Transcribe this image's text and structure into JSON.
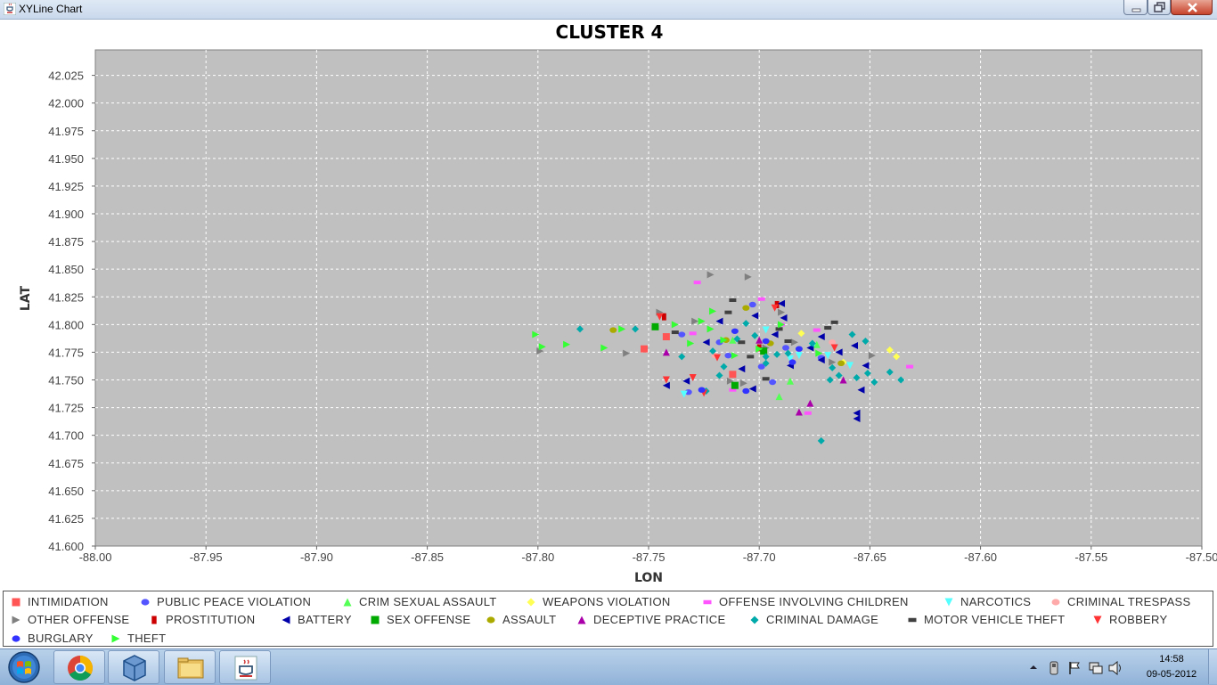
{
  "window": {
    "title": "XYLine Chart",
    "icon": "java-cup-icon"
  },
  "chart_data": {
    "type": "scatter",
    "title": "CLUSTER 4",
    "xlabel": "LON",
    "ylabel": "LAT",
    "xlim": [
      -88.0,
      -87.5
    ],
    "ylim": [
      41.6,
      42.05
    ],
    "xticks": [
      "-88.00",
      "-87.95",
      "-87.90",
      "-87.85",
      "-87.80",
      "-87.75",
      "-87.70",
      "-87.65",
      "-87.60",
      "-87.55",
      "-87.50"
    ],
    "yticks": [
      "41.600",
      "41.625",
      "41.650",
      "41.675",
      "41.700",
      "41.725",
      "41.750",
      "41.775",
      "41.800",
      "41.825",
      "41.850",
      "41.875",
      "41.900",
      "41.925",
      "41.950",
      "41.975",
      "42.000",
      "42.025"
    ],
    "grid": true,
    "legend": "bottom",
    "series": [
      {
        "name": "INTIMIDATION",
        "color": "#ff5555",
        "marker": "square",
        "points": [
          [
            -87.752,
            41.778
          ],
          [
            -87.742,
            41.789
          ],
          [
            -87.712,
            41.755
          ]
        ]
      },
      {
        "name": "PUBLIC PEACE VIOLATION",
        "color": "#5555ff",
        "marker": "circle",
        "points": [
          [
            -87.735,
            41.791
          ],
          [
            -87.732,
            41.739
          ],
          [
            -87.714,
            41.772
          ],
          [
            -87.703,
            41.818
          ],
          [
            -87.699,
            41.762
          ],
          [
            -87.694,
            41.748
          ],
          [
            -87.688,
            41.779
          ],
          [
            -87.672,
            41.77
          ],
          [
            -87.718,
            41.784
          ]
        ]
      },
      {
        "name": "CRIM SEXUAL ASSAULT",
        "color": "#55ff55",
        "marker": "triangle-up",
        "points": [
          [
            -87.691,
            41.735
          ],
          [
            -87.686,
            41.749
          ],
          [
            -87.712,
            41.786
          ],
          [
            -87.674,
            41.782
          ]
        ]
      },
      {
        "name": "WEAPONS VIOLATION",
        "color": "#ffff55",
        "marker": "diamond",
        "points": [
          [
            -87.641,
            41.777
          ],
          [
            -87.638,
            41.771
          ],
          [
            -87.681,
            41.792
          ],
          [
            -87.662,
            41.766
          ]
        ]
      },
      {
        "name": "OFFENSE INVOLVING CHILDREN",
        "color": "#ff55ff",
        "marker": "rect-h",
        "points": [
          [
            -87.728,
            41.838
          ],
          [
            -87.699,
            41.823
          ],
          [
            -87.632,
            41.762
          ],
          [
            -87.678,
            41.72
          ],
          [
            -87.712,
            41.741
          ],
          [
            -87.69,
            41.8
          ],
          [
            -87.73,
            41.792
          ],
          [
            -87.674,
            41.795
          ]
        ]
      },
      {
        "name": "NARCOTICS",
        "color": "#55ffff",
        "marker": "triangle-down",
        "points": [
          [
            -87.734,
            41.737
          ],
          [
            -87.686,
            41.769
          ],
          [
            -87.682,
            41.772
          ],
          [
            -87.669,
            41.772
          ],
          [
            -87.659,
            41.763
          ],
          [
            -87.697,
            41.795
          ],
          [
            -87.676,
            41.78
          ]
        ]
      },
      {
        "name": "CRIMINAL TRESPASS",
        "color": "#ffaaaa",
        "marker": "circle",
        "points": [
          [
            -87.72,
            41.772
          ],
          [
            -87.667,
            41.784
          ]
        ]
      },
      {
        "name": "OTHER OFFENSE",
        "color": "#808080",
        "marker": "triangle-right",
        "points": [
          [
            -87.722,
            41.845
          ],
          [
            -87.705,
            41.843
          ],
          [
            -87.799,
            41.776
          ],
          [
            -87.76,
            41.774
          ],
          [
            -87.745,
            41.811
          ],
          [
            -87.729,
            41.803
          ],
          [
            -87.707,
            41.747
          ],
          [
            -87.697,
            41.779
          ],
          [
            -87.684,
            41.784
          ],
          [
            -87.667,
            41.766
          ],
          [
            -87.649,
            41.772
          ],
          [
            -87.713,
            41.749
          ],
          [
            -87.69,
            41.811
          ]
        ]
      },
      {
        "name": "PROSTITUTION",
        "color": "#cc0000",
        "marker": "rect-v",
        "points": [
          [
            -87.743,
            41.807
          ],
          [
            -87.692,
            41.818
          ],
          [
            -87.7,
            41.779
          ]
        ]
      },
      {
        "name": "BATTERY",
        "color": "#0000aa",
        "marker": "triangle-left",
        "points": [
          [
            -87.656,
            41.72
          ],
          [
            -87.656,
            41.715
          ],
          [
            -87.654,
            41.741
          ],
          [
            -87.652,
            41.763
          ],
          [
            -87.657,
            41.781
          ],
          [
            -87.672,
            41.768
          ],
          [
            -87.686,
            41.763
          ],
          [
            -87.693,
            41.791
          ],
          [
            -87.703,
            41.742
          ],
          [
            -87.708,
            41.76
          ],
          [
            -87.718,
            41.803
          ],
          [
            -87.724,
            41.784
          ],
          [
            -87.733,
            41.749
          ],
          [
            -87.742,
            41.745
          ],
          [
            -87.69,
            41.819
          ],
          [
            -87.702,
            41.808
          ],
          [
            -87.664,
            41.775
          ],
          [
            -87.677,
            41.779
          ],
          [
            -87.689,
            41.806
          ],
          [
            -87.672,
            41.789
          ]
        ]
      },
      {
        "name": "SEX OFFENSE",
        "color": "#00aa00",
        "marker": "square",
        "points": [
          [
            -87.747,
            41.798
          ],
          [
            -87.711,
            41.745
          ],
          [
            -87.698,
            41.776
          ]
        ]
      },
      {
        "name": "ASSAULT",
        "color": "#aaaa00",
        "marker": "circle",
        "points": [
          [
            -87.766,
            41.795
          ],
          [
            -87.706,
            41.815
          ],
          [
            -87.715,
            41.786
          ],
          [
            -87.695,
            41.783
          ],
          [
            -87.663,
            41.765
          ]
        ]
      },
      {
        "name": "DECEPTIVE PRACTICE",
        "color": "#aa00aa",
        "marker": "triangle-up",
        "points": [
          [
            -87.742,
            41.775
          ],
          [
            -87.682,
            41.721
          ],
          [
            -87.677,
            41.729
          ],
          [
            -87.662,
            41.75
          ],
          [
            -87.7,
            41.786
          ]
        ]
      },
      {
        "name": "CRIMINAL DAMAGE",
        "color": "#00aaaa",
        "marker": "diamond",
        "points": [
          [
            -87.781,
            41.796
          ],
          [
            -87.756,
            41.796
          ],
          [
            -87.735,
            41.771
          ],
          [
            -87.721,
            41.776
          ],
          [
            -87.716,
            41.762
          ],
          [
            -87.706,
            41.801
          ],
          [
            -87.697,
            41.771
          ],
          [
            -87.687,
            41.774
          ],
          [
            -87.676,
            41.783
          ],
          [
            -87.667,
            41.761
          ],
          [
            -87.664,
            41.754
          ],
          [
            -87.658,
            41.791
          ],
          [
            -87.656,
            41.752
          ],
          [
            -87.652,
            41.785
          ],
          [
            -87.651,
            41.756
          ],
          [
            -87.648,
            41.748
          ],
          [
            -87.641,
            41.757
          ],
          [
            -87.636,
            41.75
          ],
          [
            -87.672,
            41.695
          ],
          [
            -87.692,
            41.773
          ],
          [
            -87.718,
            41.754
          ],
          [
            -87.71,
            41.787
          ],
          [
            -87.702,
            41.79
          ],
          [
            -87.668,
            41.75
          ],
          [
            -87.724,
            41.74
          ],
          [
            -87.697,
            41.765
          ]
        ]
      },
      {
        "name": "MOTOR VEHICLE THEFT",
        "color": "#404040",
        "marker": "rect-h",
        "points": [
          [
            -87.712,
            41.822
          ],
          [
            -87.708,
            41.784
          ],
          [
            -87.704,
            41.771
          ],
          [
            -87.697,
            41.751
          ],
          [
            -87.687,
            41.785
          ],
          [
            -87.669,
            41.797
          ],
          [
            -87.666,
            41.802
          ],
          [
            -87.691,
            41.796
          ],
          [
            -87.738,
            41.793
          ],
          [
            -87.714,
            41.811
          ]
        ]
      },
      {
        "name": "ROBBERY",
        "color": "#ff3333",
        "marker": "triangle-down",
        "points": [
          [
            -87.745,
            41.807
          ],
          [
            -87.742,
            41.75
          ],
          [
            -87.73,
            41.752
          ],
          [
            -87.725,
            41.738
          ],
          [
            -87.719,
            41.77
          ],
          [
            -87.666,
            41.779
          ],
          [
            -87.693,
            41.815
          ]
        ]
      },
      {
        "name": "BURGLARY",
        "color": "#3333ff",
        "marker": "circle",
        "points": [
          [
            -87.685,
            41.766
          ],
          [
            -87.682,
            41.778
          ],
          [
            -87.697,
            41.785
          ],
          [
            -87.706,
            41.74
          ],
          [
            -87.711,
            41.794
          ],
          [
            -87.726,
            41.741
          ]
        ]
      },
      {
        "name": "THEFT",
        "color": "#33ff33",
        "marker": "triangle-right",
        "points": [
          [
            -87.801,
            41.791
          ],
          [
            -87.798,
            41.78
          ],
          [
            -87.787,
            41.782
          ],
          [
            -87.77,
            41.779
          ],
          [
            -87.762,
            41.796
          ],
          [
            -87.738,
            41.8
          ],
          [
            -87.726,
            41.803
          ],
          [
            -87.722,
            41.796
          ],
          [
            -87.721,
            41.812
          ],
          [
            -87.7,
            41.778
          ],
          [
            -87.69,
            41.8
          ],
          [
            -87.673,
            41.774
          ],
          [
            -87.716,
            41.786
          ],
          [
            -87.711,
            41.772
          ],
          [
            -87.731,
            41.783
          ]
        ]
      }
    ]
  },
  "taskbar": {
    "start": "windows-start-orb-icon",
    "apps": [
      "chrome-icon",
      "virtualbox-icon",
      "explorer-folder-icon",
      "java-icon"
    ],
    "tray_icons": [
      "show-hidden-icons-arrow",
      "usb-device-icon",
      "flag-icon",
      "network-icon",
      "volume-icon"
    ],
    "clock_time": "14:58",
    "clock_date": "09-05-2012"
  }
}
